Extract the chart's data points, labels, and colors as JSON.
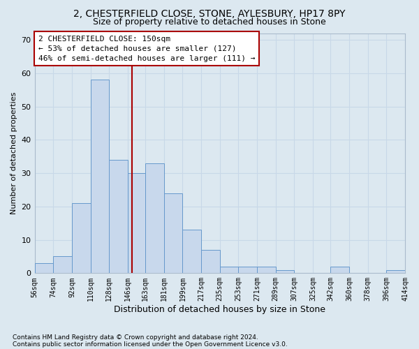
{
  "title": "2, CHESTERFIELD CLOSE, STONE, AYLESBURY, HP17 8PY",
  "subtitle": "Size of property relative to detached houses in Stone",
  "xlabel": "Distribution of detached houses by size in Stone",
  "ylabel": "Number of detached properties",
  "footnote1": "Contains HM Land Registry data © Crown copyright and database right 2024.",
  "footnote2": "Contains public sector information licensed under the Open Government Licence v3.0.",
  "annotation_line1": "2 CHESTERFIELD CLOSE: 150sqm",
  "annotation_line2": "← 53% of detached houses are smaller (127)",
  "annotation_line3": "46% of semi-detached houses are larger (111) →",
  "property_size": 150,
  "bin_edges": [
    56,
    74,
    92,
    110,
    128,
    146,
    163,
    181,
    199,
    217,
    235,
    253,
    271,
    289,
    307,
    325,
    342,
    360,
    378,
    396,
    414
  ],
  "bar_heights": [
    3,
    5,
    21,
    58,
    34,
    30,
    33,
    24,
    13,
    7,
    2,
    2,
    2,
    1,
    0,
    0,
    2,
    0,
    0,
    1
  ],
  "bar_color": "#c8d8ec",
  "bar_edge_color": "#6699cc",
  "vline_color": "#aa0000",
  "vline_x": 150,
  "ylim": [
    0,
    72
  ],
  "yticks": [
    0,
    10,
    20,
    30,
    40,
    50,
    60,
    70
  ],
  "grid_color": "#c8d8e8",
  "background_color": "#dce8f0",
  "title_fontsize": 10,
  "subtitle_fontsize": 9,
  "xlabel_fontsize": 9,
  "ylabel_fontsize": 8,
  "annotation_box_edgecolor": "#aa0000",
  "annotation_box_facecolor": "#ffffff",
  "footnote_fontsize": 6.5
}
